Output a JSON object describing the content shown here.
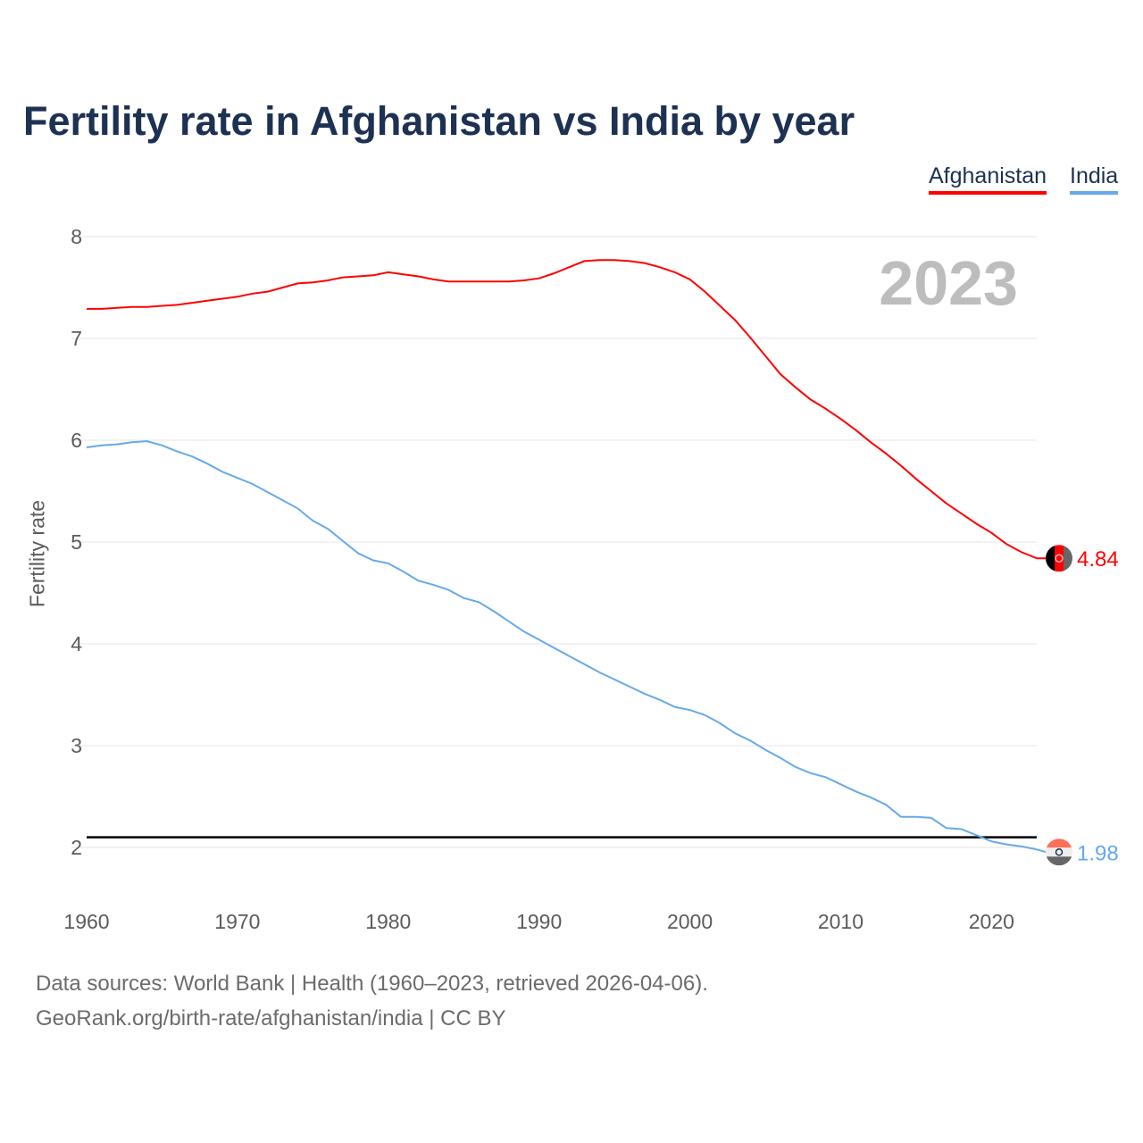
{
  "chart_data": {
    "type": "line",
    "title": "Fertility rate in Afghanistan vs India by year",
    "xlabel": "",
    "ylabel": "Fertility rate",
    "xlim": [
      1960,
      2023
    ],
    "ylim": [
      2,
      8
    ],
    "xticks": [
      "1960",
      "1970",
      "1980",
      "1990",
      "2000",
      "2010",
      "2020"
    ],
    "yticks": [
      "2",
      "3",
      "4",
      "5",
      "6",
      "7",
      "8"
    ],
    "grid": true,
    "legend_position": "top-right",
    "year_label": "2023",
    "reference_line": {
      "value": 2.1,
      "color": "#000000"
    },
    "x": [
      1960,
      1961,
      1962,
      1963,
      1964,
      1965,
      1966,
      1967,
      1968,
      1969,
      1970,
      1971,
      1972,
      1973,
      1974,
      1975,
      1976,
      1977,
      1978,
      1979,
      1980,
      1981,
      1982,
      1983,
      1984,
      1985,
      1986,
      1987,
      1988,
      1989,
      1990,
      1991,
      1992,
      1993,
      1994,
      1995,
      1996,
      1997,
      1998,
      1999,
      2000,
      2001,
      2002,
      2003,
      2004,
      2005,
      2006,
      2007,
      2008,
      2009,
      2010,
      2011,
      2012,
      2013,
      2014,
      2015,
      2016,
      2017,
      2018,
      2019,
      2020,
      2021,
      2022,
      2023
    ],
    "series": [
      {
        "name": "Afghanistan",
        "color": "#ff0000",
        "end_label": "4.84",
        "flag": "afghanistan-flag",
        "values": [
          7.29,
          7.29,
          7.3,
          7.31,
          7.31,
          7.32,
          7.33,
          7.35,
          7.37,
          7.39,
          7.41,
          7.44,
          7.46,
          7.5,
          7.54,
          7.55,
          7.57,
          7.6,
          7.61,
          7.62,
          7.65,
          7.63,
          7.61,
          7.58,
          7.56,
          7.56,
          7.56,
          7.56,
          7.56,
          7.57,
          7.59,
          7.64,
          7.7,
          7.76,
          7.77,
          7.77,
          7.76,
          7.74,
          7.7,
          7.65,
          7.58,
          7.46,
          7.32,
          7.18,
          7.01,
          6.83,
          6.65,
          6.52,
          6.4,
          6.31,
          6.21,
          6.1,
          5.98,
          5.87,
          5.75,
          5.62,
          5.5,
          5.38,
          5.28,
          5.18,
          5.09,
          4.98,
          4.9,
          4.84
        ]
      },
      {
        "name": "India",
        "color": "#67a9ea",
        "end_label": "1.98",
        "flag": "india-flag",
        "values": [
          5.93,
          5.95,
          5.96,
          5.98,
          5.99,
          5.95,
          5.89,
          5.84,
          5.77,
          5.69,
          5.63,
          5.57,
          5.49,
          5.41,
          5.33,
          5.21,
          5.13,
          5.01,
          4.89,
          4.82,
          4.79,
          4.71,
          4.62,
          4.58,
          4.53,
          4.45,
          4.41,
          4.32,
          4.22,
          4.12,
          4.04,
          3.96,
          3.88,
          3.8,
          3.72,
          3.65,
          3.58,
          3.51,
          3.45,
          3.38,
          3.35,
          3.3,
          3.22,
          3.12,
          3.05,
          2.96,
          2.88,
          2.79,
          2.73,
          2.69,
          2.62,
          2.55,
          2.49,
          2.42,
          2.3,
          2.3,
          2.29,
          2.19,
          2.18,
          2.12,
          2.06,
          2.03,
          2.01,
          1.98
        ]
      }
    ]
  },
  "footer": {
    "line1": "Data sources: World Bank | Health (1960–2023, retrieved 2026-04-06).",
    "line2": "GeoRank.org/birth-rate/afghanistan/india | CC BY"
  }
}
